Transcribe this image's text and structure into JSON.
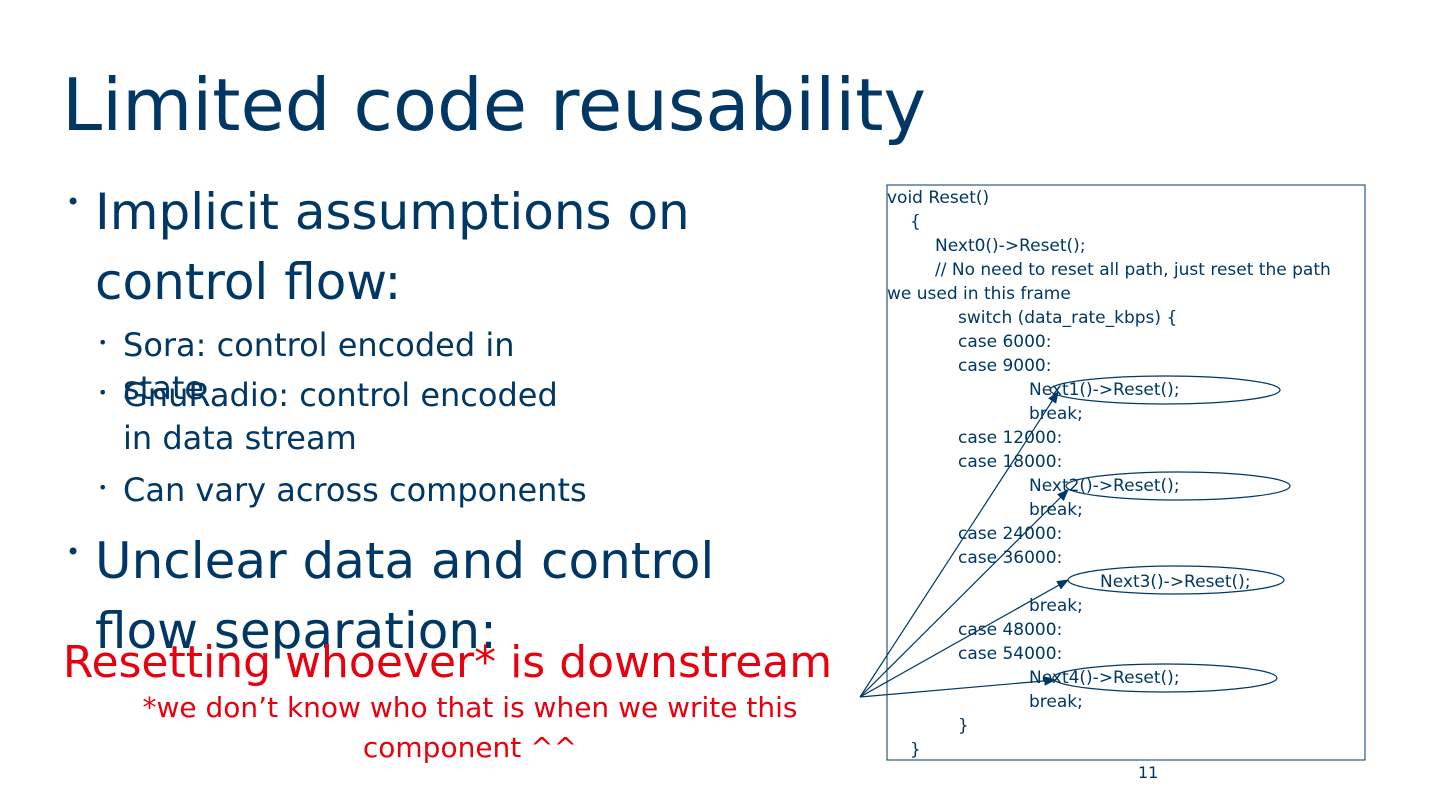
{
  "slide": {
    "title": "Limited code reusability",
    "bullets": [
      {
        "text": "Implicit assumptions on control flow:",
        "sub": [
          "Sora: control encoded in state",
          "GnuRadio: control encoded in data stream",
          "Can vary across components"
        ]
      },
      {
        "text": "Unclear data and control flow separation:"
      }
    ],
    "callout": "Resetting whoever* is downstream",
    "footnote": "*we don’t know who that is when we write this component ^^",
    "code": [
      "void Reset()",
      "{",
      "Next0()->Reset();",
      "// No need to reset all path, just reset the path",
      "we used in this frame",
      "switch (data_rate_kbps) {",
      "case 6000:",
      "case 9000:",
      "Next1()->Reset();",
      "break;",
      "case 12000:",
      "case 18000:",
      "Next2()->Reset();",
      "break;",
      "case 24000:",
      "case 36000:",
      "Next3()->Reset();",
      "break;",
      "case 48000:",
      "case 54000:",
      "Next4()->Reset();",
      "break;",
      "}",
      "}"
    ],
    "page_number": "11"
  }
}
